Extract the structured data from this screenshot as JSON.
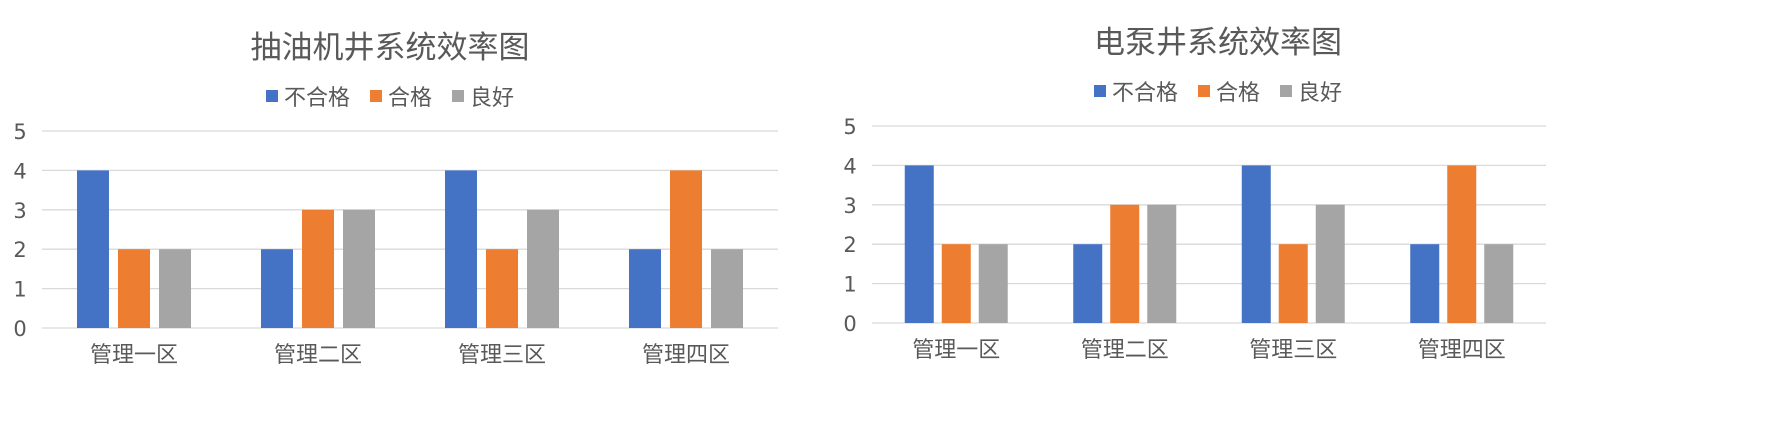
{
  "chart_data": [
    {
      "type": "bar",
      "title": "抽油机井系统效率图",
      "categories": [
        "管理一区",
        "管理二区",
        "管理三区",
        "管理四区"
      ],
      "series": [
        {
          "name": "不合格",
          "values": [
            4,
            2,
            4,
            2
          ]
        },
        {
          "name": "合格",
          "values": [
            2,
            3,
            2,
            4
          ]
        },
        {
          "name": "良好",
          "values": [
            2,
            3,
            3,
            2
          ]
        }
      ],
      "xlabel": "",
      "ylabel": "",
      "ylim": [
        0,
        5
      ],
      "yticks": [
        "0",
        "1",
        "2",
        "3",
        "4",
        "5"
      ],
      "grid": true,
      "legend": "top-center"
    },
    {
      "type": "bar",
      "title": "电泵井系统效率图",
      "categories": [
        "管理一区",
        "管理二区",
        "管理三区",
        "管理四区"
      ],
      "series": [
        {
          "name": "不合格",
          "values": [
            4,
            2,
            4,
            2
          ]
        },
        {
          "name": "合格",
          "values": [
            2,
            3,
            2,
            4
          ]
        },
        {
          "name": "良好",
          "values": [
            2,
            3,
            3,
            2
          ]
        }
      ],
      "xlabel": "",
      "ylabel": "",
      "ylim": [
        0,
        5
      ],
      "yticks": [
        "0",
        "1",
        "2",
        "3",
        "4",
        "5"
      ],
      "grid": true,
      "legend": "top-center"
    }
  ],
  "colors": {
    "series": [
      "#4472C4",
      "#ED7D31",
      "#A5A5A5"
    ],
    "grid": "#D9D9D9",
    "text": "#595959"
  }
}
